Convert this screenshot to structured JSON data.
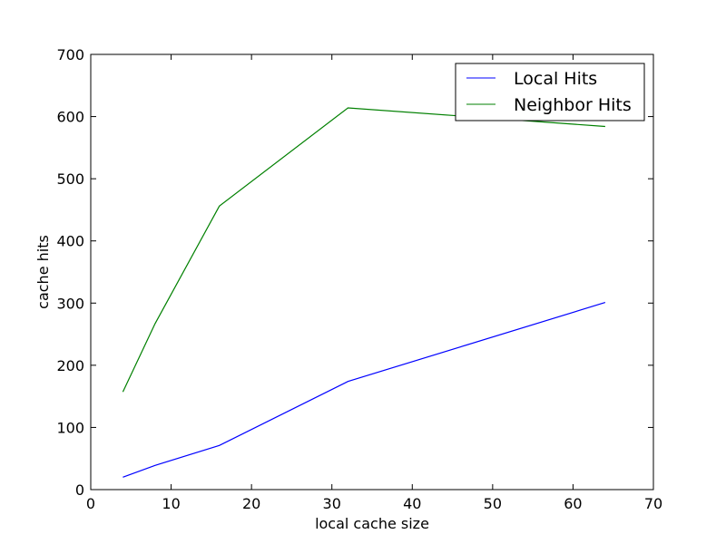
{
  "chart_data": {
    "type": "line",
    "title": "",
    "xlabel": "local cache size",
    "ylabel": "cache hits",
    "xlim": [
      0,
      70
    ],
    "ylim": [
      0,
      700
    ],
    "xticks": [
      0,
      10,
      20,
      30,
      40,
      50,
      60,
      70
    ],
    "yticks": [
      0,
      100,
      200,
      300,
      400,
      500,
      600,
      700
    ],
    "grid": false,
    "legend_position": "top-right",
    "series": [
      {
        "name": "Local Hits",
        "color": "#0000ff",
        "x": [
          4,
          8,
          16,
          32,
          64
        ],
        "y": [
          20,
          39,
          71,
          174,
          301
        ]
      },
      {
        "name": "Neighbor Hits",
        "color": "#008000",
        "x": [
          4,
          8,
          16,
          32,
          64
        ],
        "y": [
          157,
          267,
          456,
          614,
          584
        ]
      }
    ]
  }
}
